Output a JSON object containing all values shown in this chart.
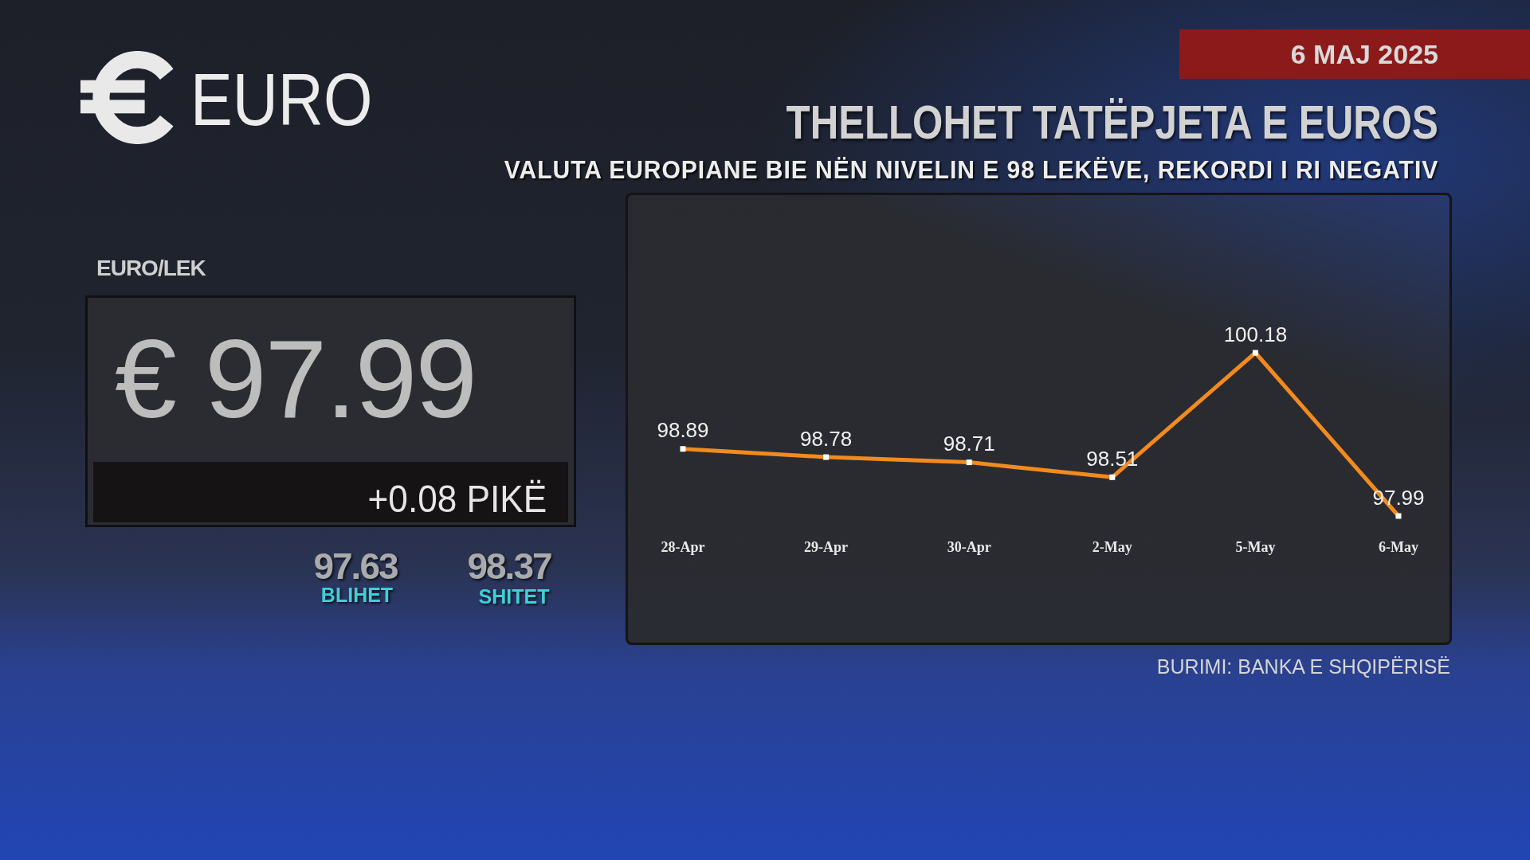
{
  "chart_data": [
    {
      "type": "other",
      "title": "EURO",
      "subtitle": "EURO/LEK",
      "annotations": [
        "€ 97.99",
        "+0.08 PIKË",
        "97.63",
        "BLIHET",
        "98.37",
        "SHITET"
      ]
    },
    {
      "type": "line",
      "title": "THELLOHET TATËPJETA E EUROS",
      "subtitle": "VALUTA EUROPIANE BIE NËN NIVELIN E 98 LEKËVE, REKORDI I RI NEGATIV",
      "categories": [
        "28-Apr",
        "29-Apr",
        "30-Apr",
        "2-May",
        "5-May",
        "6-May"
      ],
      "values": [
        98.89,
        98.78,
        98.71,
        98.51,
        100.18,
        97.99
      ],
      "color": "#f28a1e",
      "marker": "square",
      "line_style": "solid",
      "data_labels": true,
      "tick_labels": "x",
      "annotations": [
        "6 MAJ 2025",
        "BURIMI: BANKA E SHQIPËRISË"
      ]
    }
  ]
}
